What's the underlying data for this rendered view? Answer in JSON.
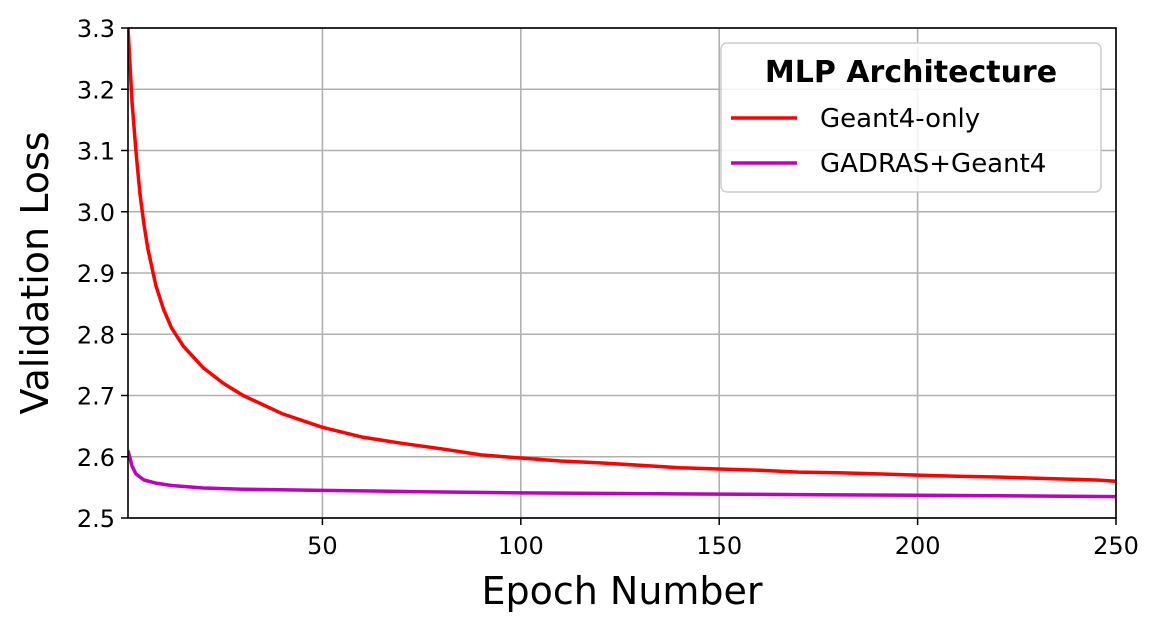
{
  "chart_data": {
    "type": "line",
    "xlabel": "Epoch Number",
    "ylabel": "Validation Loss",
    "xlim": [
      1,
      250
    ],
    "ylim": [
      2.5,
      3.3
    ],
    "xticks": [
      50,
      100,
      150,
      200,
      250
    ],
    "xtick_labels": [
      "50",
      "100",
      "150",
      "200",
      "250"
    ],
    "yticks": [
      2.5,
      2.6,
      2.7,
      2.8,
      2.9,
      3.0,
      3.1,
      3.2,
      3.3
    ],
    "ytick_labels": [
      "2.5",
      "2.6",
      "2.7",
      "2.8",
      "2.9",
      "3.0",
      "3.1",
      "3.2",
      "3.3"
    ],
    "grid": true,
    "legend": {
      "title": "MLP Architecture",
      "placement": "top-right"
    },
    "series": [
      {
        "name": "Geant4-only",
        "color": "#ff0000",
        "x": [
          1,
          2,
          3,
          4,
          5,
          6,
          7,
          8,
          10,
          12,
          15,
          20,
          25,
          30,
          40,
          50,
          60,
          70,
          80,
          90,
          100,
          110,
          120,
          130,
          140,
          150,
          160,
          170,
          180,
          190,
          200,
          210,
          220,
          230,
          240,
          245,
          250
        ],
        "y": [
          3.3,
          3.18,
          3.1,
          3.03,
          2.98,
          2.94,
          2.91,
          2.88,
          2.84,
          2.81,
          2.78,
          2.745,
          2.72,
          2.7,
          2.67,
          2.648,
          2.632,
          2.622,
          2.613,
          2.603,
          2.598,
          2.593,
          2.59,
          2.586,
          2.582,
          2.58,
          2.578,
          2.575,
          2.574,
          2.572,
          2.57,
          2.568,
          2.567,
          2.565,
          2.563,
          2.562,
          2.56
        ]
      },
      {
        "name": "GADRAS+Geant4",
        "color": "#bf00bf",
        "x": [
          1,
          2,
          3,
          5,
          8,
          12,
          20,
          30,
          50,
          75,
          100,
          125,
          150,
          175,
          200,
          225,
          250
        ],
        "y": [
          2.61,
          2.585,
          2.572,
          2.562,
          2.557,
          2.553,
          2.549,
          2.547,
          2.545,
          2.543,
          2.541,
          2.54,
          2.539,
          2.538,
          2.537,
          2.536,
          2.535
        ]
      }
    ]
  }
}
